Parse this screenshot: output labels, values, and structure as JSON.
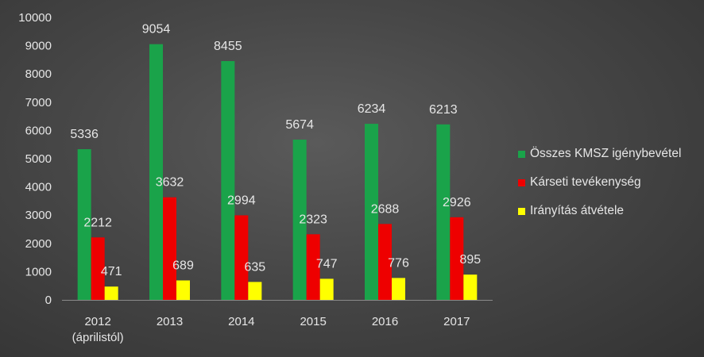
{
  "chart_data": {
    "type": "bar",
    "categories": [
      "2012\n(áprilistól)",
      "2013",
      "2014",
      "2015",
      "2016",
      "2017"
    ],
    "series": [
      {
        "name": "Összes KMSZ igénybevétel",
        "color": "#1aa34a",
        "values": [
          5336,
          9054,
          8455,
          5674,
          6234,
          6213
        ]
      },
      {
        "name": "Kárseti tevékenység",
        "color": "#ee0000",
        "values": [
          2212,
          3632,
          2994,
          2323,
          2688,
          2926
        ]
      },
      {
        "name": "Irányítás átvétele",
        "color": "#ffff00",
        "values": [
          471,
          689,
          635,
          747,
          776,
          895
        ]
      }
    ],
    "yticks": [
      "0",
      "1000",
      "2000",
      "3000",
      "4000",
      "5000",
      "6000",
      "7000",
      "8000",
      "9000",
      "10000"
    ],
    "ylim": [
      0,
      10000
    ],
    "legend_position": "right",
    "grid": false
  }
}
